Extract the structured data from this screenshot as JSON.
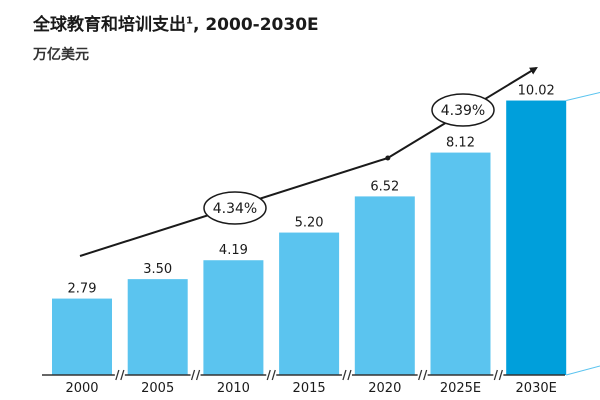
{
  "chart_data": {
    "type": "bar",
    "title": "全球教育和培训支出",
    "title_footnote": "1",
    "title_suffix": ", 2000-2030E",
    "ylabel": "万亿美元",
    "xlabel": "",
    "categories": [
      "2000",
      "2005",
      "2010",
      "2015",
      "2020",
      "2025E",
      "2030E"
    ],
    "values": [
      2.79,
      3.5,
      4.19,
      5.2,
      6.52,
      8.12,
      10.02
    ],
    "value_labels": [
      "2.79",
      "3.50",
      "4.19",
      "5.20",
      "6.52",
      "8.12",
      "10.02"
    ],
    "ylim": [
      0,
      11.5
    ],
    "grid": false,
    "legend": "none",
    "colors": {
      "bar": "#5bc4ef",
      "highlight": "#009fdb",
      "axis": "#333333",
      "arrow": "#1a1a1a"
    },
    "highlight_category": "2030E",
    "annotations": [
      {
        "text": "4.34%",
        "from": "2000",
        "to": "2020"
      },
      {
        "text": "4.39%",
        "from": "2020",
        "to": "2030E"
      }
    ]
  }
}
